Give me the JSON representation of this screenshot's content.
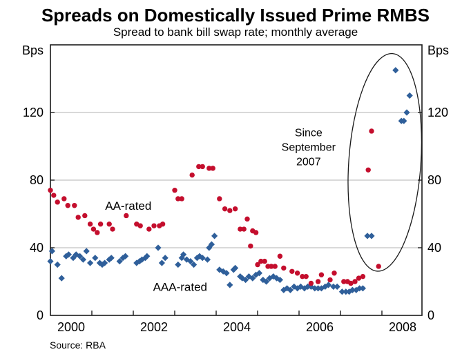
{
  "source": "Source: RBA",
  "chart_data": {
    "type": "scatter",
    "title": "Spreads on Domestically Issued Prime RMBS",
    "subtitle": "Spread to bank bill swap rate; monthly average",
    "y_axis": {
      "unit": "Bps",
      "min": 0,
      "max": 160,
      "ticks": [
        0,
        40,
        80,
        120
      ],
      "gridlines": [
        40,
        80,
        120
      ]
    },
    "x_axis": {
      "min": 2000,
      "max": 2008.97,
      "tick_years": [
        2001,
        2002,
        2003,
        2004,
        2005,
        2006,
        2007,
        2008
      ],
      "label_years": [
        2000,
        2002,
        2004,
        2006,
        2008
      ]
    },
    "grid": true,
    "legend_position": "inline-labels",
    "series": [
      {
        "name": "AA-rated",
        "marker": "circle",
        "color": "#c40e2d",
        "label_pos": {
          "year": 2001.88,
          "bps": 65
        },
        "points": [
          [
            2000.0,
            74
          ],
          [
            2000.08,
            71
          ],
          [
            2000.17,
            67
          ],
          [
            2000.33,
            69
          ],
          [
            2000.42,
            65
          ],
          [
            2000.58,
            65
          ],
          [
            2000.67,
            58
          ],
          [
            2000.83,
            59
          ],
          [
            2000.96,
            54
          ],
          [
            2001.04,
            51
          ],
          [
            2001.13,
            49
          ],
          [
            2001.21,
            54
          ],
          [
            2001.42,
            54
          ],
          [
            2001.5,
            51
          ],
          [
            2001.83,
            59
          ],
          [
            2002.08,
            54
          ],
          [
            2002.17,
            53
          ],
          [
            2002.38,
            51
          ],
          [
            2002.5,
            53
          ],
          [
            2002.63,
            53
          ],
          [
            2002.71,
            54
          ],
          [
            2003.0,
            74
          ],
          [
            2003.08,
            69
          ],
          [
            2003.17,
            69
          ],
          [
            2003.42,
            83
          ],
          [
            2003.58,
            88
          ],
          [
            2003.67,
            88
          ],
          [
            2003.83,
            87
          ],
          [
            2003.92,
            87
          ],
          [
            2004.08,
            69
          ],
          [
            2004.21,
            63
          ],
          [
            2004.33,
            62
          ],
          [
            2004.46,
            63
          ],
          [
            2004.58,
            51
          ],
          [
            2004.67,
            51
          ],
          [
            2004.75,
            57
          ],
          [
            2004.83,
            41
          ],
          [
            2004.88,
            50
          ],
          [
            2004.96,
            49
          ],
          [
            2005.0,
            30
          ],
          [
            2005.08,
            32
          ],
          [
            2005.17,
            32
          ],
          [
            2005.25,
            29
          ],
          [
            2005.33,
            29
          ],
          [
            2005.42,
            29
          ],
          [
            2005.54,
            35
          ],
          [
            2005.63,
            28
          ],
          [
            2005.83,
            26
          ],
          [
            2005.96,
            25
          ],
          [
            2006.08,
            23
          ],
          [
            2006.17,
            23
          ],
          [
            2006.29,
            19
          ],
          [
            2006.46,
            20
          ],
          [
            2006.54,
            24
          ],
          [
            2006.75,
            21
          ],
          [
            2006.85,
            25
          ],
          [
            2007.08,
            20
          ],
          [
            2007.17,
            20
          ],
          [
            2007.25,
            19
          ],
          [
            2007.35,
            20
          ],
          [
            2007.44,
            22
          ],
          [
            2007.54,
            23
          ],
          [
            2007.67,
            86
          ],
          [
            2007.75,
            109
          ],
          [
            2007.92,
            29
          ]
        ]
      },
      {
        "name": "AAA-rated",
        "marker": "diamond",
        "color": "#2f5f9a",
        "label_pos": {
          "year": 2003.13,
          "bps": 17
        },
        "points": [
          [
            2000.0,
            32
          ],
          [
            2000.04,
            38
          ],
          [
            2000.17,
            30
          ],
          [
            2000.27,
            22
          ],
          [
            2000.38,
            35
          ],
          [
            2000.44,
            36
          ],
          [
            2000.55,
            34
          ],
          [
            2000.62,
            36
          ],
          [
            2000.71,
            35
          ],
          [
            2000.79,
            33
          ],
          [
            2000.87,
            38
          ],
          [
            2000.96,
            31
          ],
          [
            2001.08,
            34
          ],
          [
            2001.19,
            31
          ],
          [
            2001.25,
            30
          ],
          [
            2001.31,
            31
          ],
          [
            2001.42,
            33
          ],
          [
            2001.47,
            34
          ],
          [
            2001.67,
            32
          ],
          [
            2001.75,
            34
          ],
          [
            2001.81,
            35
          ],
          [
            2002.08,
            31
          ],
          [
            2002.15,
            32
          ],
          [
            2002.21,
            33
          ],
          [
            2002.29,
            34
          ],
          [
            2002.33,
            35
          ],
          [
            2002.6,
            40
          ],
          [
            2002.69,
            31
          ],
          [
            2002.77,
            34
          ],
          [
            2003.08,
            30
          ],
          [
            2003.17,
            34
          ],
          [
            2003.21,
            36
          ],
          [
            2003.29,
            33
          ],
          [
            2003.38,
            32
          ],
          [
            2003.46,
            30
          ],
          [
            2003.54,
            34
          ],
          [
            2003.6,
            35
          ],
          [
            2003.67,
            34
          ],
          [
            2003.79,
            33
          ],
          [
            2003.83,
            40
          ],
          [
            2003.89,
            42
          ],
          [
            2003.96,
            47
          ],
          [
            2004.08,
            27
          ],
          [
            2004.17,
            26
          ],
          [
            2004.25,
            25
          ],
          [
            2004.33,
            18
          ],
          [
            2004.42,
            27
          ],
          [
            2004.46,
            28
          ],
          [
            2004.58,
            23
          ],
          [
            2004.63,
            22
          ],
          [
            2004.71,
            21
          ],
          [
            2004.79,
            23
          ],
          [
            2004.88,
            22
          ],
          [
            2004.96,
            24
          ],
          [
            2005.04,
            25
          ],
          [
            2005.13,
            21
          ],
          [
            2005.21,
            20
          ],
          [
            2005.29,
            22
          ],
          [
            2005.38,
            23
          ],
          [
            2005.46,
            22
          ],
          [
            2005.54,
            21
          ],
          [
            2005.63,
            15
          ],
          [
            2005.71,
            16
          ],
          [
            2005.79,
            15
          ],
          [
            2005.88,
            17
          ],
          [
            2005.96,
            16
          ],
          [
            2006.04,
            17
          ],
          [
            2006.13,
            16
          ],
          [
            2006.21,
            17
          ],
          [
            2006.29,
            17
          ],
          [
            2006.38,
            16
          ],
          [
            2006.46,
            16
          ],
          [
            2006.54,
            16
          ],
          [
            2006.63,
            17
          ],
          [
            2006.71,
            18
          ],
          [
            2006.83,
            17
          ],
          [
            2006.92,
            17
          ],
          [
            2007.04,
            14
          ],
          [
            2007.13,
            14
          ],
          [
            2007.21,
            14
          ],
          [
            2007.29,
            15
          ],
          [
            2007.38,
            15
          ],
          [
            2007.46,
            16
          ],
          [
            2007.54,
            16
          ],
          [
            2007.65,
            47
          ],
          [
            2007.75,
            47
          ],
          [
            2008.33,
            145
          ],
          [
            2008.47,
            115
          ],
          [
            2008.53,
            115
          ],
          [
            2008.6,
            120
          ],
          [
            2008.67,
            130
          ]
        ]
      }
    ],
    "annotation": {
      "lines": [
        "Since",
        "September",
        "2007"
      ],
      "text_pos": {
        "year": 2006.23,
        "bps": 106
      },
      "line_height_bps": 8.6,
      "ellipse": {
        "cx_year": 2008.07,
        "cy_bps": 90.5,
        "rx_years": 0.87,
        "ry_bps": 64.5,
        "rotation_deg": 4
      }
    },
    "colors": {
      "grid": "#b3b3b3",
      "axis": "#1a1a1a",
      "text": "#000000"
    }
  }
}
